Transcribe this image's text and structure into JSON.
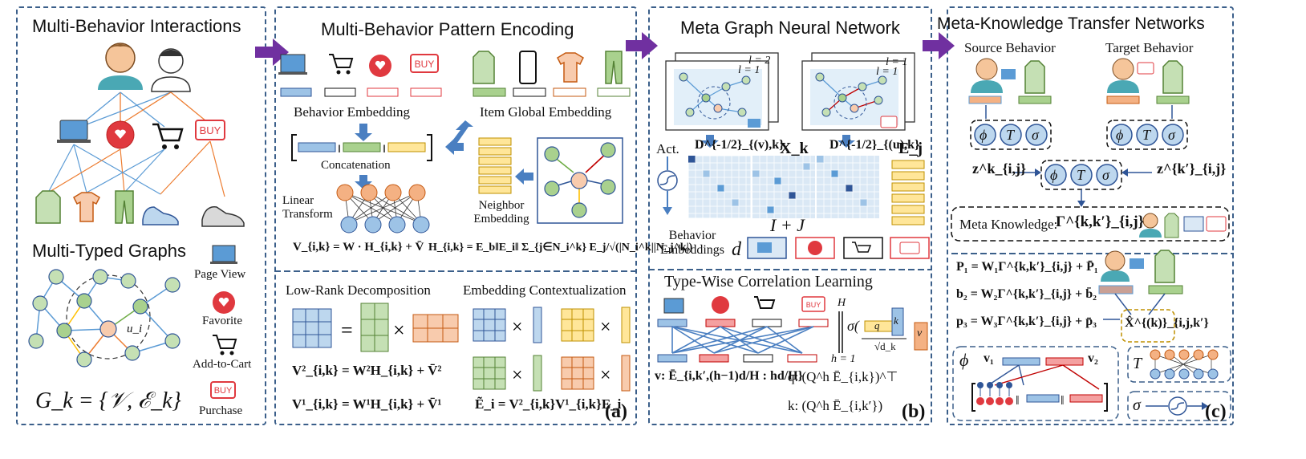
{
  "panel1": {
    "title": "Multi-Behavior Interactions",
    "subtitle": "Multi-Typed Graphs",
    "legend": [
      "Page View",
      "Favorite",
      "Add-to-Cart",
      "Purchase"
    ],
    "node_label": "u_i",
    "formula": "G_k = {𝒱, ℰ_k}",
    "buy_text": "BUY"
  },
  "panel2": {
    "title": "Multi-Behavior Pattern Encoding",
    "behavior_embedding": "Behavior Embedding",
    "item_global_embedding": "Item Global Embedding",
    "concatenation": "Concatenation",
    "linear_transform": "Linear Transform",
    "neighbor_embedding": "Neighbor Embedding",
    "eq_v": "V_{i,k} = W · H_{i,k} + V̄",
    "eq_h": "H_{i,k} = E_b‖E_i‖ Σ_{j∈N_i^k} E_j/√(|N_i^k||N_j^k|)",
    "low_rank": "Low-Rank Decomposition",
    "embedding_context": "Embedding Contextualization",
    "eq_v2": "V²_{i,k} = W²H_{i,k} + V̄²",
    "eq_v1": "V¹_{i,k} = W¹H_{i,k} + V̄¹",
    "eq_e": "Ẽ_i = V²_{i,k}V¹_{i,k}E_i",
    "tag": "(a)"
  },
  "panel3": {
    "title": "Meta Graph Neural Network",
    "l2": "l = 2",
    "l1": "l = 1",
    "act": "Act.",
    "d_v": "D^{-1/2}_{(v),k}",
    "x_k": "X_k",
    "d_u": "D^{-1/2}_{(u),k}",
    "e_j": "E_j",
    "i_plus_j": "I + J",
    "behavior_embeddings": "Behavior Embeddings",
    "d": "d",
    "type_wise": "Type-Wise Correlation Learning",
    "h_top": "H",
    "h_bottom": "h = 1",
    "q": "q",
    "k": "k",
    "sqrt_dk": "√d_k",
    "v": "v",
    "eq_v": "v: Ē_{i,k′,(h−1)d/H : hd/H}",
    "eq_q": "q: (Q^h Ē_{i,k})^⊤",
    "eq_k": "k: (Q^h Ē_{i,k′})",
    "tag": "(b)"
  },
  "panel4": {
    "title": "Meta-Knowledge Transfer Networks",
    "source": "Source Behavior",
    "target": "Target Behavior",
    "phi": "ϕ",
    "T": "T",
    "sigma": "σ",
    "z_k": "z^k_{i,j}",
    "z_kp": "z^{k′}_{i,j}",
    "meta_knowledge": "Meta Knowledge:",
    "gamma": "Γ^{k,k′}_{i,j}",
    "eq_p1": "P₁ = W₁Γ^{k,k′}_{i,j} + P̄₁",
    "eq_b2": "b₂ = W₂Γ^{k,k′}_{i,j} + b̄₂",
    "eq_p3": "p₃ = W₃Γ^{k,k′}_{i,j} + p̄₃",
    "x_hat": "X̂^{(k)}_{i,j,k′}",
    "v1": "v₁",
    "v2": "v₂",
    "tag": "(c)"
  },
  "colors": {
    "panel_border": "#3b5f8a",
    "arrow": "#7030a0",
    "blue_arrow": "#4a7fc1",
    "node_blue": "#9dc3e6",
    "node_green": "#a9d18e",
    "node_orange": "#f4b183",
    "edge_blue": "#5b9bd5",
    "edge_orange": "#ed7d31",
    "red": "#e0393f",
    "yellow_bar": "#ffe699"
  }
}
